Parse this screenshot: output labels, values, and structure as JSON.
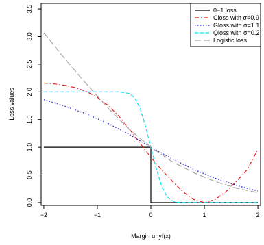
{
  "chart_data": {
    "type": "line",
    "xlabel": "Margin u=yf(x)",
    "ylabel": "Loss values",
    "xlim": [
      -2.05,
      2.05
    ],
    "ylim": [
      -0.05,
      3.6
    ],
    "xticks": [
      -2,
      -1,
      0,
      1,
      2
    ],
    "yticks": [
      0.0,
      0.5,
      1.0,
      1.5,
      2.0,
      2.5,
      3.0,
      3.5
    ],
    "xtick_labels": [
      "−2",
      "−1",
      "0",
      "1",
      "2"
    ],
    "ytick_labels": [
      "0.0",
      "0.5",
      "1.0",
      "1.5",
      "2.0",
      "2.5",
      "3.0",
      "3.5"
    ],
    "legend_position": "top-right",
    "series": [
      {
        "name": "0−1 loss",
        "color": "#000000",
        "dash": "solid",
        "x": [
          -2,
          0,
          0,
          2
        ],
        "y": [
          1,
          1,
          0,
          0
        ]
      },
      {
        "name": "Closs with σ=0.9",
        "color": "#e31a1c",
        "dash": "dashdot",
        "x": [
          -2.0,
          -1.8,
          -1.6,
          -1.4,
          -1.2,
          -1.0,
          -0.8,
          -0.6,
          -0.4,
          -0.2,
          0.0,
          0.2,
          0.4,
          0.6,
          0.8,
          1.0,
          1.2,
          1.4,
          1.6,
          1.8,
          2.0
        ],
        "y": [
          2.159,
          2.144,
          2.118,
          2.074,
          2.005,
          1.901,
          1.755,
          1.563,
          1.327,
          1.069,
          0.818,
          0.593,
          0.387,
          0.196,
          0.055,
          0.0,
          0.055,
          0.196,
          0.387,
          0.593,
          0.964
        ]
      },
      {
        "name": "Gloss with σ=1.1",
        "color": "#1f1fd6",
        "dash": "dotted",
        "x": [
          -2.0,
          -1.6,
          -1.2,
          -0.8,
          -0.4,
          0.0,
          0.4,
          0.8,
          1.2,
          1.6,
          2.0
        ],
        "y": [
          1.86,
          1.74,
          1.6,
          1.43,
          1.23,
          1.0,
          0.79,
          0.6,
          0.44,
          0.31,
          0.21
        ]
      },
      {
        "name": "Qloss with σ=0.2",
        "color": "#00e5ee",
        "dash": "dashed",
        "x": [
          -2.0,
          -0.6,
          -0.4,
          -0.3,
          -0.2,
          -0.1,
          0.0,
          0.1,
          0.2,
          0.3,
          0.4,
          0.5,
          0.6,
          2.0
        ],
        "y": [
          2.0,
          2.0,
          1.97,
          1.89,
          1.7,
          1.38,
          1.0,
          0.62,
          0.3,
          0.11,
          0.03,
          0.006,
          0.0,
          0.0
        ]
      },
      {
        "name": "Logistic loss",
        "color": "#a6a6a6",
        "dash": "longdash",
        "x": [
          -2.0,
          -1.6,
          -1.2,
          -0.8,
          -0.4,
          0.0,
          0.4,
          0.8,
          1.2,
          1.6,
          2.0
        ],
        "y": [
          3.07,
          2.59,
          2.14,
          1.71,
          1.32,
          1.0,
          0.74,
          0.54,
          0.38,
          0.26,
          0.18
        ]
      }
    ]
  }
}
